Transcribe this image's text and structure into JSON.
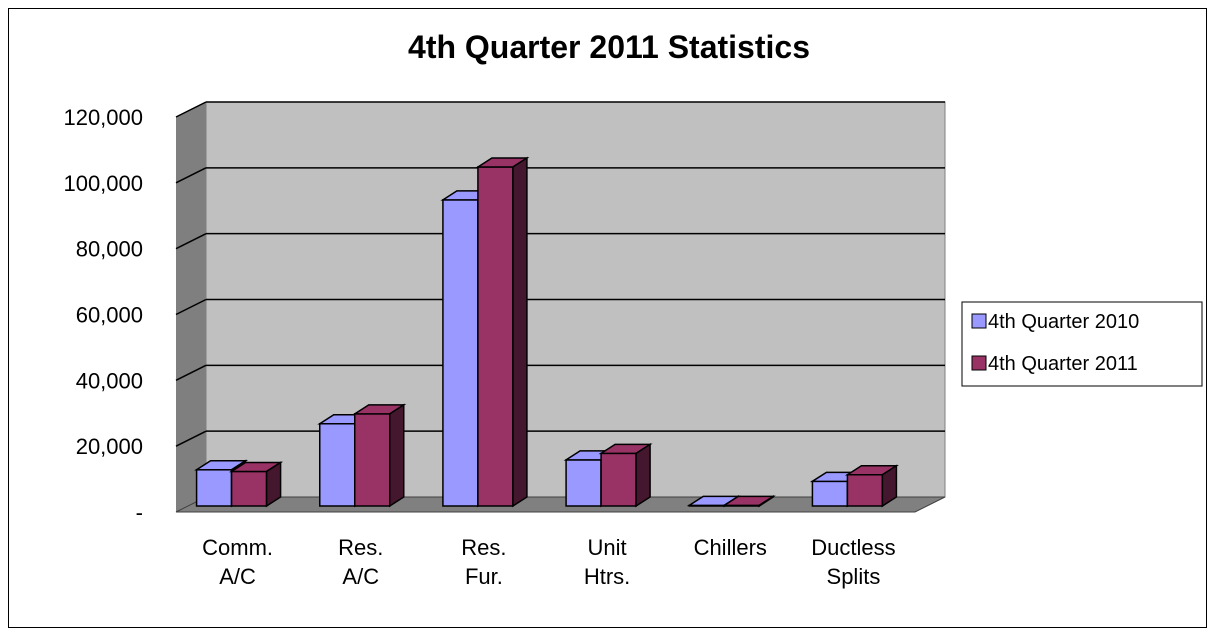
{
  "chart_data": {
    "type": "bar",
    "title": "4th Quarter 2011 Statistics",
    "categories": [
      [
        "Comm.",
        "A/C"
      ],
      [
        "Res.",
        "A/C"
      ],
      [
        "Res.",
        "Fur."
      ],
      [
        "Unit",
        "Htrs."
      ],
      [
        "Chillers"
      ],
      [
        "Ductless",
        "Splits"
      ]
    ],
    "series": [
      {
        "name": "4th Quarter 2010",
        "color": "#9999ff",
        "values": [
          11000,
          25000,
          93000,
          14000,
          200,
          7500
        ]
      },
      {
        "name": "4th Quarter 2011",
        "color": "#993366",
        "values": [
          10500,
          28000,
          103000,
          16000,
          200,
          9500
        ]
      }
    ],
    "ylim": [
      0,
      120000
    ],
    "yticks": [
      "-",
      "20,000",
      "40,000",
      "60,000",
      "80,000",
      "100,000",
      "120,000"
    ],
    "grid": true,
    "legend_position": "right",
    "xlabel": "",
    "ylabel": ""
  }
}
